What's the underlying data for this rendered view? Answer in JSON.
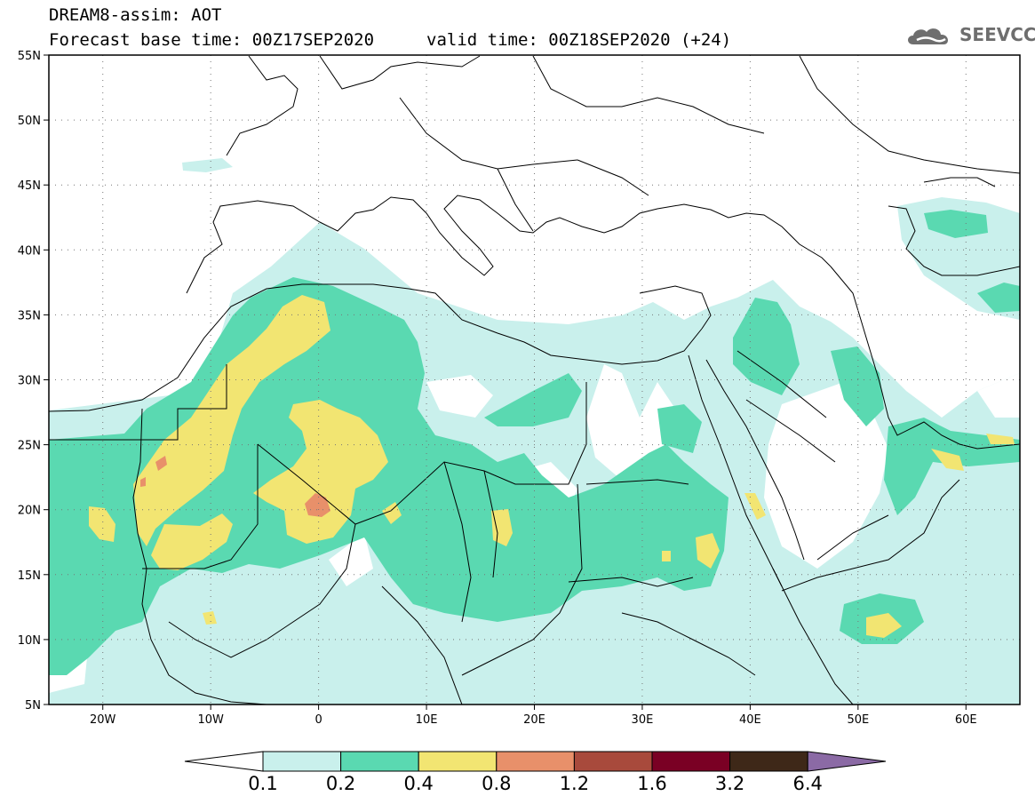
{
  "header": {
    "title": "DREAM8-assim: AOT",
    "base_time": "Forecast base time: 00Z17SEP2020",
    "valid_time": "valid time: 00Z18SEP2020 (+24)",
    "logo_text": "SEEVCCC"
  },
  "map": {
    "lon_range": [
      -25,
      65
    ],
    "lat_range": [
      5,
      55
    ],
    "lat_ticks": [
      "55N",
      "50N",
      "45N",
      "40N",
      "35N",
      "30N",
      "25N",
      "20N",
      "15N",
      "10N",
      "5N"
    ],
    "lon_ticks": [
      "20W",
      "10W",
      "0",
      "10E",
      "20E",
      "30E",
      "40E",
      "50E",
      "60E"
    ]
  },
  "colorbar": {
    "labels": [
      "0.1",
      "0.2",
      "0.4",
      "0.8",
      "1.2",
      "1.6",
      "3.2",
      "6.4"
    ],
    "colors": [
      "#ffffff",
      "#c9f0ec",
      "#5ad9b1",
      "#f2e572",
      "#e8906a",
      "#a84a3c",
      "#7a0024",
      "#3e2818",
      "#8b6aa5"
    ]
  },
  "colors": {
    "c1": "#c9f0ec",
    "c2": "#5ad9b1",
    "c3": "#f2e572",
    "c4": "#e8906a",
    "border": "#000000"
  }
}
